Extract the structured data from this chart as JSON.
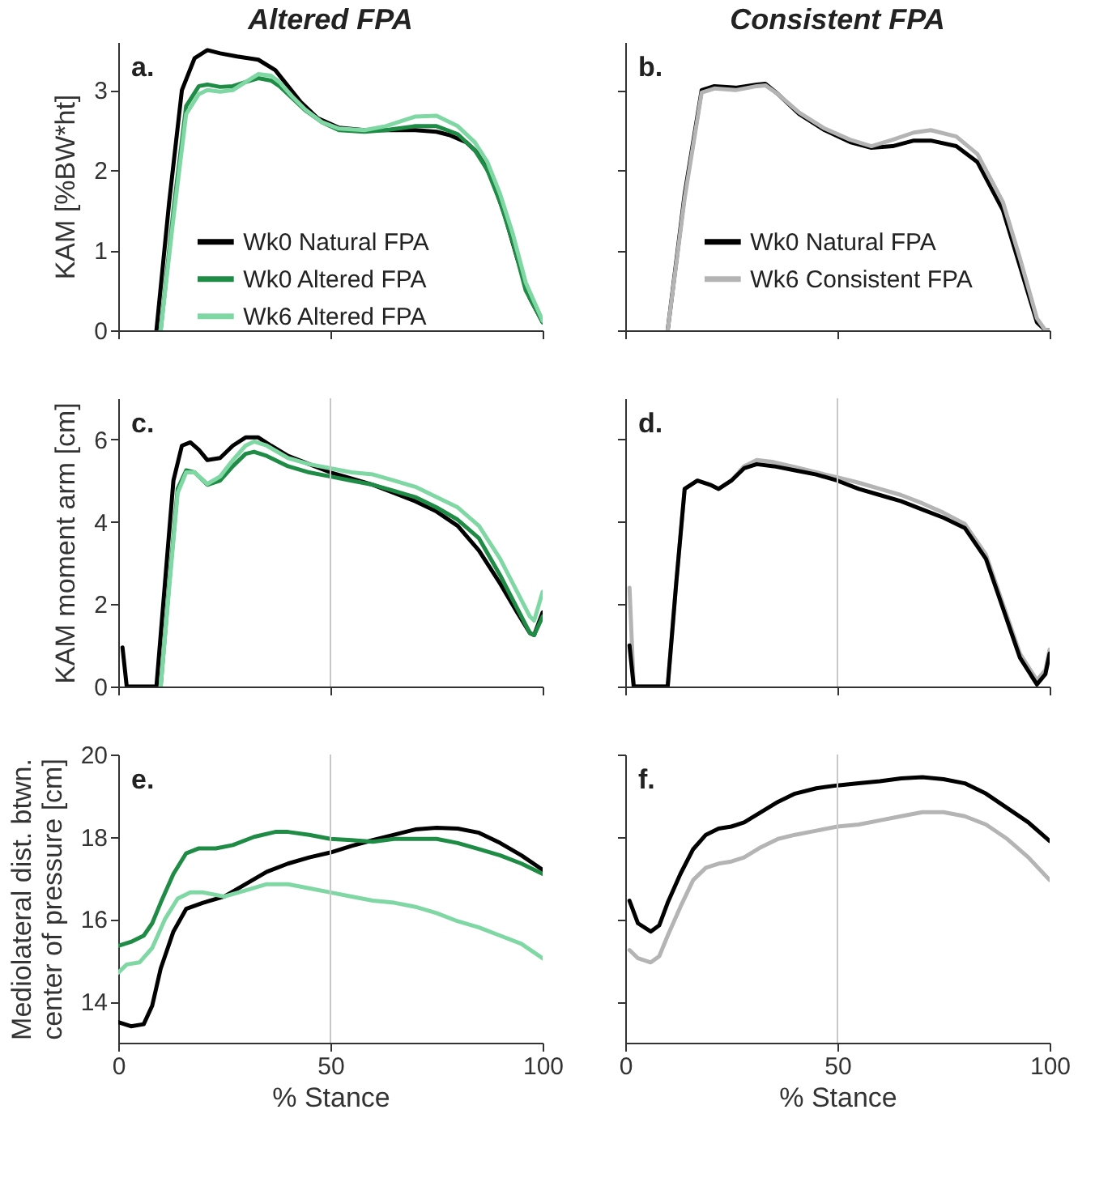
{
  "chart_data": [
    {
      "type": "line",
      "title": "Altered FPA",
      "ylabel": "KAM [%BW*ht]",
      "annotations": [
        "a."
      ],
      "xlim": [
        0,
        100
      ],
      "xticks": [
        0,
        50,
        100
      ],
      "ylim": [
        0,
        3.6
      ],
      "yticks": [
        0,
        1,
        2,
        3
      ],
      "tick_labels": "y",
      "legend": "bottom",
      "grid": false,
      "series": [
        {
          "name": "Wk0 Natural FPA",
          "color": "#000000",
          "x": [
            9,
            12,
            15,
            18,
            21,
            24,
            28,
            33,
            37,
            40,
            43,
            47,
            52,
            58,
            63,
            70,
            75,
            78,
            82,
            85,
            88,
            91,
            94,
            97,
            100
          ],
          "values": [
            0,
            1.6,
            3.0,
            3.4,
            3.5,
            3.46,
            3.42,
            3.38,
            3.25,
            3.05,
            2.85,
            2.65,
            2.53,
            2.5,
            2.5,
            2.5,
            2.48,
            2.44,
            2.35,
            2.2,
            1.9,
            1.45,
            0.9,
            0.4,
            0.1
          ]
        },
        {
          "name": "Wk0 Altered FPA",
          "color": "#1e8c45",
          "x": [
            10,
            13,
            16,
            19,
            21,
            24,
            27,
            30,
            33,
            36,
            38,
            41,
            44,
            48,
            52,
            58,
            63,
            70,
            75,
            80,
            84,
            87,
            90,
            93,
            96,
            100
          ],
          "values": [
            0,
            1.5,
            2.8,
            3.05,
            3.07,
            3.04,
            3.05,
            3.1,
            3.15,
            3.12,
            3.05,
            2.9,
            2.75,
            2.6,
            2.5,
            2.48,
            2.5,
            2.55,
            2.55,
            2.45,
            2.25,
            2.0,
            1.6,
            1.1,
            0.5,
            0.1
          ]
        },
        {
          "name": "Wk6 Altered FPA",
          "color": "#7fd8a4",
          "x": [
            10,
            13,
            16,
            19,
            21,
            24,
            27,
            30,
            33,
            36,
            38,
            41,
            44,
            48,
            52,
            58,
            63,
            70,
            75,
            80,
            84,
            87,
            90,
            93,
            96,
            100
          ],
          "values": [
            0,
            1.4,
            2.7,
            2.95,
            3.0,
            2.98,
            3.0,
            3.1,
            3.2,
            3.18,
            3.1,
            2.92,
            2.76,
            2.6,
            2.52,
            2.5,
            2.55,
            2.67,
            2.68,
            2.55,
            2.35,
            2.1,
            1.7,
            1.2,
            0.6,
            0.12
          ]
        }
      ]
    },
    {
      "type": "line",
      "title": "Consistent FPA",
      "annotations": [
        "b."
      ],
      "xlim": [
        0,
        100
      ],
      "xticks": [
        0,
        50,
        100
      ],
      "ylim": [
        0,
        3.6
      ],
      "yticks": [
        0,
        1,
        2,
        3
      ],
      "tick_labels": false,
      "legend": "bottom",
      "grid": false,
      "series": [
        {
          "name": "Wk0 Natural FPA",
          "color": "#000000",
          "x": [
            10,
            14,
            18,
            21,
            26,
            31,
            33,
            36,
            41,
            47,
            53,
            58,
            63,
            68,
            72,
            78,
            83,
            89,
            93,
            97,
            99,
            100
          ],
          "values": [
            0,
            1.7,
            3.0,
            3.05,
            3.03,
            3.07,
            3.08,
            2.95,
            2.7,
            2.5,
            2.35,
            2.28,
            2.3,
            2.37,
            2.37,
            2.3,
            2.1,
            1.5,
            0.8,
            0.1,
            0,
            0
          ]
        },
        {
          "name": "Wk6 Consistent FPA",
          "color": "#b4b4b4",
          "x": [
            10,
            14,
            18,
            21,
            26,
            31,
            33,
            36,
            41,
            47,
            53,
            58,
            63,
            68,
            72,
            78,
            83,
            89,
            93,
            97,
            99,
            100
          ],
          "values": [
            0,
            1.65,
            2.97,
            3.02,
            3.0,
            3.05,
            3.06,
            2.95,
            2.72,
            2.52,
            2.38,
            2.3,
            2.38,
            2.47,
            2.5,
            2.42,
            2.2,
            1.6,
            0.9,
            0.15,
            0,
            0
          ]
        }
      ]
    },
    {
      "type": "line",
      "ylabel": "KAM moment arm [cm]",
      "annotations": [
        "c."
      ],
      "xlim": [
        0,
        100
      ],
      "xticks": [
        0,
        50,
        100
      ],
      "ylim": [
        0,
        7
      ],
      "yticks": [
        0,
        2,
        4,
        6
      ],
      "tick_labels": "y",
      "grid": false,
      "ref_lines": [
        {
          "axis": "x",
          "value": 50,
          "color": "#c8c8c8"
        }
      ],
      "series": [
        {
          "color": "#000000",
          "x": [
            1,
            2,
            9,
            11,
            13,
            15,
            17,
            19,
            21,
            24,
            27,
            30,
            33,
            36,
            40,
            45,
            50,
            55,
            60,
            65,
            70,
            75,
            80,
            85,
            90,
            94,
            97,
            98,
            100
          ],
          "values": [
            0.95,
            0,
            0,
            2.5,
            5.0,
            5.85,
            5.93,
            5.75,
            5.5,
            5.55,
            5.85,
            6.05,
            6.05,
            5.85,
            5.6,
            5.4,
            5.2,
            5.05,
            4.9,
            4.7,
            4.5,
            4.25,
            3.9,
            3.3,
            2.5,
            1.8,
            1.3,
            1.25,
            1.8
          ]
        },
        {
          "color": "#1e8c45",
          "x": [
            10,
            12,
            14,
            16,
            18,
            21,
            24,
            27,
            30,
            32,
            35,
            40,
            45,
            50,
            55,
            60,
            65,
            70,
            75,
            80,
            85,
            90,
            94,
            97,
            98,
            100
          ],
          "values": [
            0,
            2.5,
            4.8,
            5.25,
            5.2,
            4.9,
            5.0,
            5.35,
            5.65,
            5.7,
            5.6,
            5.35,
            5.2,
            5.1,
            5.0,
            4.9,
            4.75,
            4.6,
            4.35,
            4.05,
            3.6,
            2.7,
            1.9,
            1.3,
            1.25,
            1.7
          ]
        },
        {
          "color": "#7fd8a4",
          "x": [
            10,
            12,
            14,
            16,
            18,
            21,
            24,
            27,
            30,
            32,
            35,
            40,
            45,
            50,
            55,
            60,
            65,
            70,
            75,
            80,
            85,
            90,
            94,
            97,
            98,
            100
          ],
          "values": [
            0,
            2.4,
            4.7,
            5.2,
            5.2,
            4.92,
            5.1,
            5.5,
            5.85,
            5.95,
            5.85,
            5.55,
            5.4,
            5.3,
            5.2,
            5.15,
            5.0,
            4.85,
            4.6,
            4.35,
            3.9,
            3.1,
            2.3,
            1.7,
            1.6,
            2.3
          ]
        }
      ]
    },
    {
      "type": "line",
      "annotations": [
        "d."
      ],
      "xlim": [
        0,
        100
      ],
      "xticks": [
        0,
        50,
        100
      ],
      "ylim": [
        0,
        7
      ],
      "yticks": [
        0,
        2,
        4,
        6
      ],
      "tick_labels": false,
      "grid": false,
      "ref_lines": [
        {
          "axis": "x",
          "value": 50,
          "color": "#c8c8c8"
        }
      ],
      "series": [
        {
          "color": "#b4b4b4",
          "x": [
            1,
            2,
            10,
            12,
            14,
            17,
            20,
            22,
            25,
            28,
            31,
            35,
            40,
            45,
            50,
            55,
            60,
            65,
            70,
            75,
            80,
            85,
            90,
            93,
            97,
            99,
            100
          ],
          "values": [
            2.4,
            0,
            0,
            2.5,
            4.8,
            5.0,
            4.9,
            4.8,
            5.0,
            5.35,
            5.5,
            5.45,
            5.33,
            5.2,
            5.08,
            4.95,
            4.8,
            4.65,
            4.45,
            4.22,
            3.95,
            3.2,
            1.7,
            0.8,
            0.15,
            0.4,
            0.9
          ]
        },
        {
          "color": "#000000",
          "x": [
            1,
            2,
            10,
            12,
            14,
            17,
            20,
            22,
            25,
            28,
            31,
            35,
            40,
            45,
            50,
            55,
            60,
            65,
            70,
            75,
            80,
            85,
            90,
            93,
            97,
            99,
            100
          ],
          "values": [
            1.0,
            0,
            0,
            2.5,
            4.8,
            5.0,
            4.9,
            4.8,
            5.0,
            5.3,
            5.4,
            5.35,
            5.25,
            5.15,
            5.0,
            4.8,
            4.65,
            4.5,
            4.3,
            4.1,
            3.85,
            3.1,
            1.6,
            0.7,
            0.05,
            0.3,
            0.8
          ]
        }
      ]
    },
    {
      "type": "line",
      "ylabel": "Mediolateral dist. btwn.\ncenter of pressure [cm]",
      "xlabel": "% Stance",
      "annotations": [
        "e."
      ],
      "xlim": [
        0,
        100
      ],
      "xticks": [
        0,
        50,
        100
      ],
      "ylim": [
        13,
        20
      ],
      "yticks": [
        14,
        16,
        18,
        20
      ],
      "grid": false,
      "ref_lines": [
        {
          "axis": "x",
          "value": 50,
          "color": "#c8c8c8"
        }
      ],
      "series": [
        {
          "color": "#000000",
          "x": [
            0,
            3,
            6,
            8,
            10,
            13,
            16,
            20,
            25,
            30,
            35,
            40,
            45,
            50,
            55,
            60,
            65,
            70,
            75,
            80,
            85,
            90,
            95,
            100
          ],
          "values": [
            13.5,
            13.4,
            13.45,
            13.9,
            14.8,
            15.7,
            16.25,
            16.4,
            16.55,
            16.85,
            17.15,
            17.35,
            17.5,
            17.62,
            17.78,
            17.92,
            18.05,
            18.18,
            18.22,
            18.2,
            18.1,
            17.85,
            17.55,
            17.2
          ]
        },
        {
          "color": "#1e8c45",
          "x": [
            0,
            3,
            6,
            8,
            10,
            13,
            16,
            19,
            23,
            27,
            32,
            37,
            40,
            45,
            50,
            55,
            60,
            65,
            70,
            75,
            80,
            85,
            90,
            95,
            100
          ],
          "values": [
            15.35,
            15.45,
            15.6,
            15.9,
            16.4,
            17.1,
            17.6,
            17.72,
            17.72,
            17.8,
            18.0,
            18.12,
            18.12,
            18.05,
            17.95,
            17.92,
            17.88,
            17.95,
            17.95,
            17.95,
            17.85,
            17.7,
            17.55,
            17.35,
            17.1
          ]
        },
        {
          "color": "#7fd8a4",
          "x": [
            0,
            2,
            5,
            8,
            11,
            14,
            17,
            20,
            25,
            30,
            35,
            40,
            45,
            50,
            55,
            60,
            65,
            70,
            75,
            80,
            85,
            90,
            95,
            100
          ],
          "values": [
            14.7,
            14.9,
            14.95,
            15.3,
            16.0,
            16.5,
            16.65,
            16.65,
            16.55,
            16.7,
            16.85,
            16.85,
            16.75,
            16.65,
            16.55,
            16.45,
            16.4,
            16.3,
            16.15,
            15.95,
            15.8,
            15.6,
            15.4,
            15.05
          ]
        }
      ]
    },
    {
      "type": "line",
      "xlabel": "% Stance",
      "annotations": [
        "f."
      ],
      "xlim": [
        0,
        100
      ],
      "xticks": [
        0,
        50,
        100
      ],
      "ylim": [
        13,
        20
      ],
      "yticks": [
        14,
        16,
        18,
        20
      ],
      "tick_labels": "x",
      "grid": false,
      "ref_lines": [
        {
          "axis": "x",
          "value": 50,
          "color": "#c8c8c8"
        }
      ],
      "series": [
        {
          "color": "#000000",
          "x": [
            1,
            3,
            6,
            8,
            10,
            13,
            16,
            19,
            22,
            25,
            28,
            32,
            36,
            40,
            45,
            50,
            55,
            60,
            65,
            70,
            75,
            80,
            85,
            90,
            95,
            100
          ],
          "values": [
            16.45,
            15.9,
            15.7,
            15.85,
            16.4,
            17.1,
            17.7,
            18.05,
            18.2,
            18.25,
            18.35,
            18.6,
            18.85,
            19.05,
            19.18,
            19.25,
            19.3,
            19.35,
            19.42,
            19.45,
            19.4,
            19.3,
            19.05,
            18.7,
            18.35,
            17.9
          ]
        },
        {
          "color": "#b4b4b4",
          "x": [
            1,
            3,
            6,
            8,
            10,
            13,
            16,
            19,
            22,
            25,
            28,
            32,
            36,
            40,
            45,
            50,
            55,
            60,
            65,
            70,
            75,
            80,
            85,
            90,
            95,
            100
          ],
          "values": [
            15.25,
            15.05,
            14.95,
            15.1,
            15.6,
            16.3,
            16.95,
            17.25,
            17.35,
            17.4,
            17.5,
            17.75,
            17.95,
            18.05,
            18.15,
            18.25,
            18.3,
            18.4,
            18.5,
            18.6,
            18.6,
            18.5,
            18.3,
            17.95,
            17.5,
            16.95
          ]
        }
      ]
    }
  ]
}
